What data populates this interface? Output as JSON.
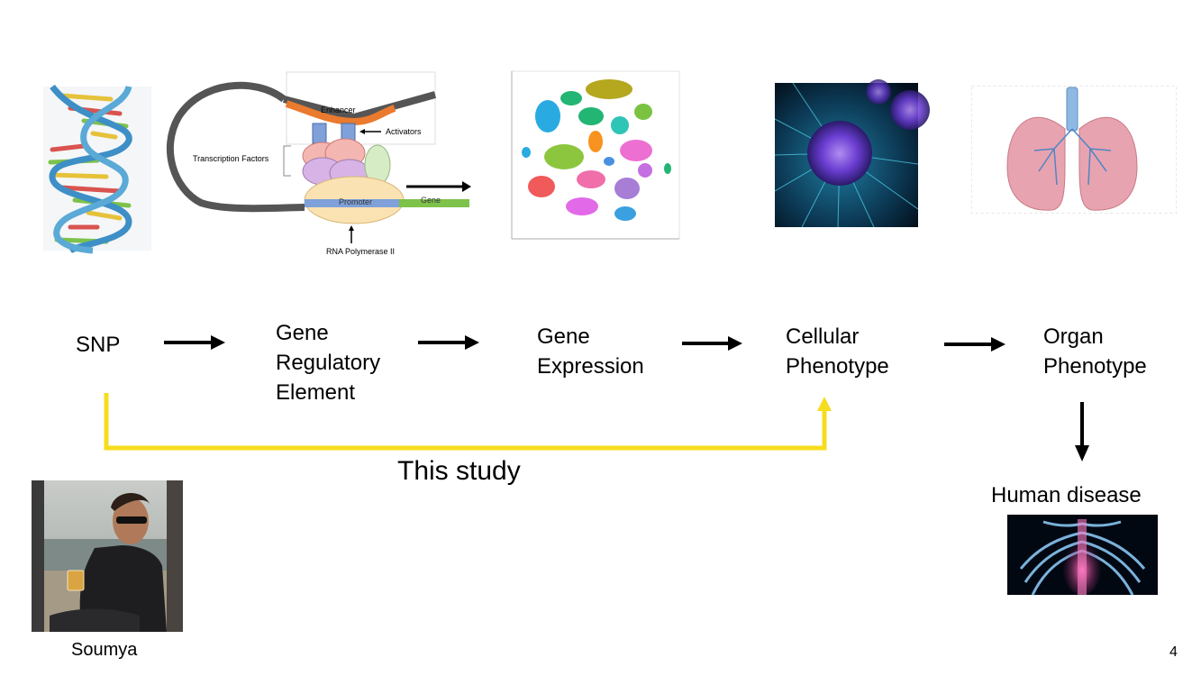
{
  "flow": {
    "snp": "SNP",
    "gre": [
      "Gene",
      "Regulatory",
      "Element"
    ],
    "gene_expression": [
      "Gene",
      "Expression"
    ],
    "cellular_phenotype": [
      "Cellular",
      "Phenotype"
    ],
    "organ_phenotype": [
      "Organ",
      "Phenotype"
    ],
    "human_disease": "Human disease",
    "this_study": "This study"
  },
  "regulation_diagram": {
    "enhancer": "Enhancer",
    "activators": "Activators",
    "transcription_factors": "Transcription Factors",
    "promoter": "Promoter",
    "gene": "Gene",
    "rna_polymerase": "RNA Polymerase II"
  },
  "person_caption": "Soumya",
  "page_number": "4",
  "colors": {
    "highlight_arrow": "#f7dc1e",
    "enhancer": "#ea7a2d",
    "promoter": "#7fa0d8",
    "gene": "#7dc24a"
  }
}
